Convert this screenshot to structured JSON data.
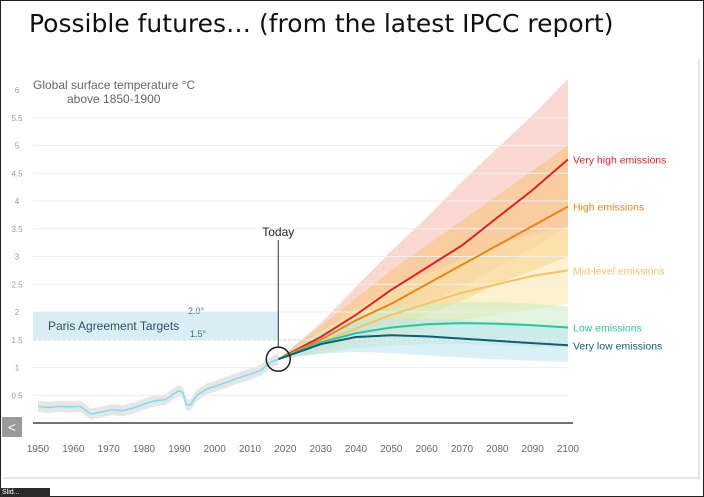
{
  "slide": {
    "title": "Possible futures… (from the latest IPCC report)"
  },
  "nav": {
    "prev_icon": "chevron-left-icon",
    "prev_glyph": "<",
    "tab_label": "Slid..."
  },
  "chart_data": {
    "type": "line",
    "title": "",
    "ylabel_lines": [
      "Global surface temperature °C",
      "above 1850-1900"
    ],
    "xlabel": "",
    "xlim": [
      1950,
      2100
    ],
    "ylim": [
      0,
      6
    ],
    "xticks": [
      1950,
      1960,
      1970,
      1980,
      1990,
      2000,
      2010,
      2020,
      2030,
      2040,
      2050,
      2060,
      2070,
      2080,
      2090,
      2100
    ],
    "yticks": [
      "0",
      "0.5",
      "1",
      "1.5",
      "2",
      "2.5",
      "3",
      "3.5",
      "4",
      "4.5",
      "5",
      "5.5",
      "6"
    ],
    "today": {
      "label": "Today",
      "x": 2018,
      "y": 1.15
    },
    "paris": {
      "label": "Paris Agreement Targets",
      "upper": "2.0°",
      "lower": "1.5°",
      "range": [
        1.5,
        2.0
      ]
    },
    "historical": {
      "x": [
        1950,
        1953,
        1956,
        1959,
        1962,
        1965,
        1968,
        1971,
        1974,
        1977,
        1980,
        1983,
        1986,
        1989,
        1990,
        1991,
        1992,
        1993,
        1995,
        1998,
        2001,
        2004,
        2007,
        2010,
        2013,
        2016,
        2018
      ],
      "y": [
        0.3,
        0.28,
        0.3,
        0.29,
        0.3,
        0.16,
        0.2,
        0.24,
        0.22,
        0.27,
        0.34,
        0.4,
        0.42,
        0.55,
        0.58,
        0.55,
        0.33,
        0.32,
        0.5,
        0.62,
        0.68,
        0.75,
        0.82,
        0.88,
        0.95,
        1.1,
        1.15
      ]
    },
    "series": [
      {
        "name": "Very high emissions",
        "color": "#d62728",
        "x": [
          2018,
          2030,
          2040,
          2050,
          2060,
          2070,
          2080,
          2090,
          2100
        ],
        "y": [
          1.15,
          1.55,
          1.95,
          2.4,
          2.8,
          3.2,
          3.7,
          4.2,
          4.75
        ],
        "band_low": [
          1.15,
          1.3,
          1.55,
          1.85,
          2.15,
          2.45,
          2.8,
          3.15,
          3.55
        ],
        "band_high": [
          1.15,
          1.8,
          2.45,
          3.1,
          3.7,
          4.35,
          4.95,
          5.55,
          6.2
        ],
        "band_color": "#f5b8ad"
      },
      {
        "name": "High emissions",
        "color": "#e8861a",
        "x": [
          2018,
          2030,
          2040,
          2050,
          2060,
          2070,
          2080,
          2090,
          2100
        ],
        "y": [
          1.15,
          1.5,
          1.85,
          2.15,
          2.5,
          2.85,
          3.2,
          3.55,
          3.9
        ],
        "band_low": [
          1.15,
          1.3,
          1.5,
          1.7,
          1.95,
          2.2,
          2.5,
          2.75,
          3.0
        ],
        "band_high": [
          1.15,
          1.75,
          2.25,
          2.75,
          3.2,
          3.65,
          4.1,
          4.55,
          5.0
        ],
        "band_color": "#f7c27a"
      },
      {
        "name": "Mid-level emissions",
        "color": "#f5c36a",
        "x": [
          2018,
          2030,
          2040,
          2050,
          2060,
          2070,
          2080,
          2090,
          2100
        ],
        "y": [
          1.15,
          1.45,
          1.7,
          1.95,
          2.15,
          2.35,
          2.5,
          2.65,
          2.75
        ],
        "band_low": [
          1.15,
          1.25,
          1.4,
          1.55,
          1.7,
          1.85,
          1.95,
          2.05,
          2.15
        ],
        "band_high": [
          1.15,
          1.65,
          2.05,
          2.4,
          2.7,
          2.95,
          3.2,
          3.4,
          3.55
        ],
        "band_color": "#fbe5a6"
      },
      {
        "name": "Low emissions",
        "color": "#2ec4a0",
        "x": [
          2018,
          2030,
          2040,
          2050,
          2060,
          2070,
          2080,
          2090,
          2100
        ],
        "y": [
          1.15,
          1.45,
          1.62,
          1.72,
          1.78,
          1.8,
          1.79,
          1.76,
          1.72
        ],
        "band_low": [
          1.15,
          1.25,
          1.35,
          1.4,
          1.42,
          1.42,
          1.4,
          1.38,
          1.35
        ],
        "band_high": [
          1.15,
          1.65,
          1.92,
          2.08,
          2.15,
          2.18,
          2.18,
          2.15,
          2.1
        ],
        "band_color": "#c8ecc2"
      },
      {
        "name": "Very low emissions",
        "color": "#0f5e74",
        "x": [
          2018,
          2030,
          2040,
          2050,
          2060,
          2070,
          2080,
          2090,
          2100
        ],
        "y": [
          1.15,
          1.42,
          1.55,
          1.58,
          1.56,
          1.52,
          1.48,
          1.44,
          1.4
        ],
        "band_low": [
          1.15,
          1.25,
          1.28,
          1.26,
          1.22,
          1.18,
          1.15,
          1.12,
          1.1
        ],
        "band_high": [
          1.15,
          1.6,
          1.82,
          1.88,
          1.88,
          1.85,
          1.82,
          1.78,
          1.75
        ],
        "band_color": "#b9e3f0"
      }
    ]
  }
}
